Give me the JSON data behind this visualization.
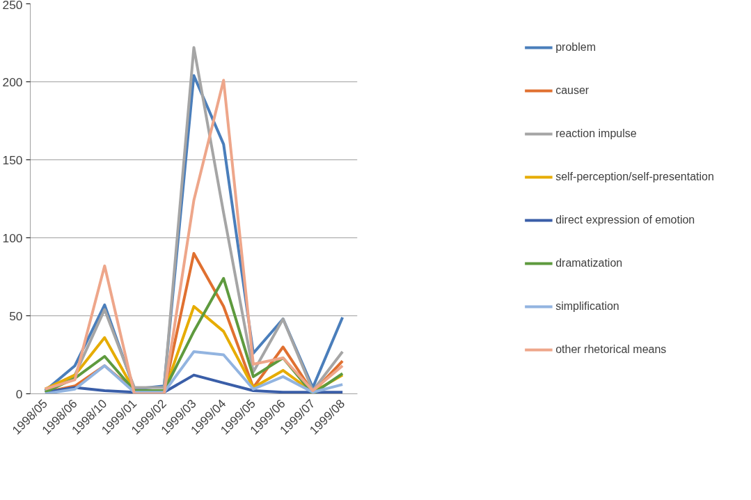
{
  "chart_data": {
    "type": "line",
    "categories": [
      "1998/05",
      "1998/06",
      "1998/10",
      "1999/01",
      "1999/02",
      "1999/03",
      "1999/04",
      "1999/05",
      "1999/06",
      "1999/07",
      "1999/08"
    ],
    "series": [
      {
        "name": "problem",
        "color": "#4a7ebb",
        "values": [
          2,
          18,
          57,
          3,
          5,
          204,
          160,
          26,
          48,
          4,
          49
        ]
      },
      {
        "name": "causer",
        "color": "#e07030",
        "values": [
          1,
          5,
          18,
          2,
          1,
          90,
          56,
          4,
          30,
          1,
          21
        ]
      },
      {
        "name": "reaction impulse",
        "color": "#a5a5a5",
        "values": [
          3,
          12,
          54,
          4,
          4,
          222,
          116,
          14,
          48,
          2,
          27
        ]
      },
      {
        "name": "self-perception/self-presentation",
        "color": "#e6ac00",
        "values": [
          3,
          12,
          36,
          2,
          1,
          56,
          40,
          4,
          15,
          1,
          12
        ]
      },
      {
        "name": "direct expression of emotion",
        "color": "#3a5ea8",
        "values": [
          1,
          4,
          2,
          1,
          1,
          12,
          7,
          2,
          1,
          1,
          1
        ]
      },
      {
        "name": "dramatization",
        "color": "#5e9a3e",
        "values": [
          1,
          10,
          24,
          2,
          2,
          40,
          74,
          11,
          23,
          0,
          13
        ]
      },
      {
        "name": "simplification",
        "color": "#92b4e0",
        "values": [
          0,
          3,
          18,
          1,
          1,
          27,
          25,
          3,
          11,
          1,
          6
        ]
      },
      {
        "name": "other rhetorical means",
        "color": "#eea68a",
        "values": [
          3,
          9,
          82,
          0,
          0,
          124,
          201,
          19,
          23,
          2,
          18
        ]
      }
    ],
    "ylim": [
      0,
      250
    ],
    "yticks": [
      0,
      50,
      100,
      150,
      200,
      250
    ],
    "grid": "y",
    "legend": "right",
    "marker": "none",
    "line_style": "solid"
  }
}
